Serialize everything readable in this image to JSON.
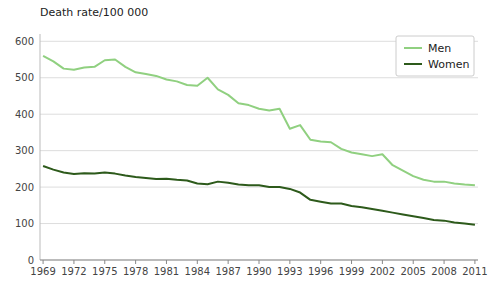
{
  "chart_data": {
    "type": "line",
    "y_label": "Death rate/100 000",
    "x": [
      1969,
      1970,
      1971,
      1972,
      1973,
      1974,
      1975,
      1976,
      1977,
      1978,
      1979,
      1980,
      1981,
      1982,
      1983,
      1984,
      1985,
      1986,
      1987,
      1988,
      1989,
      1990,
      1991,
      1992,
      1993,
      1994,
      1995,
      1996,
      1997,
      1998,
      1999,
      2000,
      2001,
      2002,
      2003,
      2004,
      2005,
      2006,
      2007,
      2008,
      2009,
      2010,
      2011
    ],
    "series": [
      {
        "name": "Men",
        "color": "#90d080",
        "values": [
          560,
          545,
          525,
          522,
          528,
          530,
          548,
          550,
          530,
          515,
          510,
          505,
          495,
          490,
          480,
          478,
          500,
          468,
          453,
          430,
          425,
          415,
          410,
          415,
          360,
          370,
          330,
          325,
          323,
          305,
          295,
          290,
          285,
          290,
          260,
          245,
          230,
          220,
          215,
          215,
          210,
          207,
          205
        ]
      },
      {
        "name": "Women",
        "color": "#2d5a1b",
        "values": [
          258,
          248,
          240,
          236,
          238,
          237,
          240,
          237,
          232,
          228,
          225,
          222,
          223,
          220,
          218,
          210,
          208,
          215,
          212,
          207,
          205,
          205,
          200,
          200,
          195,
          185,
          165,
          160,
          155,
          155,
          148,
          145,
          140,
          135,
          130,
          125,
          120,
          115,
          110,
          108,
          103,
          100,
          97
        ]
      }
    ],
    "xlim": [
      1968.7,
      2011.3
    ],
    "xticks": [
      1969,
      1972,
      1975,
      1978,
      1981,
      1984,
      1987,
      1990,
      1993,
      1996,
      1999,
      2002,
      2005,
      2008,
      2011
    ],
    "ylim": [
      0,
      620
    ],
    "yticks": [
      0,
      100,
      200,
      300,
      400,
      500,
      600
    ],
    "grid": true,
    "legend": "upper right"
  }
}
